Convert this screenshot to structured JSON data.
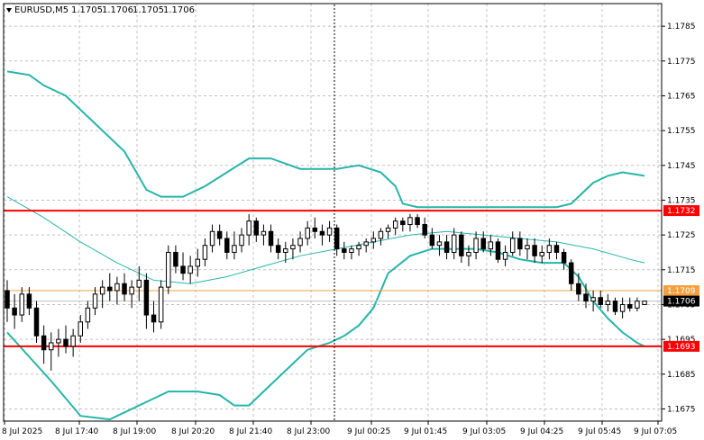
{
  "chart_data": {
    "type": "candlestick",
    "symbol_header": "EURUSD,M5",
    "ohlc_header": [
      "1.1705",
      "1.1706",
      "1.1705",
      "1.1706"
    ],
    "y_ticks": [
      "1.1785",
      "1.1775",
      "1.1765",
      "1.1755",
      "1.1745",
      "1.1735",
      "1.1725",
      "1.1715",
      "1.1705",
      "1.1695",
      "1.1685",
      "1.1675"
    ],
    "ylim": [
      1.16715,
      1.17915
    ],
    "x_ticks": [
      "8 Jul 2025",
      "8 Jul 17:40",
      "8 Jul 19:00",
      "8 Jul 20:20",
      "8 Jul 21:40",
      "8 Jul 23:00",
      "9 Jul 00:25",
      "9 Jul 01:45",
      "9 Jul 03:05",
      "9 Jul 04:25",
      "9 Jul 05:45",
      "9 Jul 07:05"
    ],
    "horizontal_levels": [
      {
        "value": 1.1732,
        "label": "1.1732",
        "color": "#ff0000"
      },
      {
        "value": 1.1693,
        "label": "1.1693",
        "color": "#ff0000"
      },
      {
        "value": 1.1709,
        "label": "1.1709",
        "color": "#f5a040"
      }
    ],
    "current_price": {
      "value": 1.1706,
      "label": "1.1706"
    },
    "vertical_marker_x": "8 Jul 23:00",
    "indicators": {
      "bollinger_color": "#26b5aa",
      "ma_color": "#26b5aa",
      "upper_band": [
        [
          0,
          1.1772
        ],
        [
          3,
          1.1771
        ],
        [
          5,
          1.1768
        ],
        [
          8,
          1.1765
        ],
        [
          12,
          1.1757
        ],
        [
          16,
          1.1749
        ],
        [
          19,
          1.1738
        ],
        [
          21,
          1.1736
        ],
        [
          24,
          1.1736
        ],
        [
          27,
          1.1739
        ],
        [
          30,
          1.1743
        ],
        [
          33,
          1.1747
        ],
        [
          36,
          1.1747
        ],
        [
          40,
          1.1744
        ],
        [
          45,
          1.1744
        ],
        [
          48,
          1.1745
        ],
        [
          51,
          1.1743
        ],
        [
          53,
          1.1739
        ],
        [
          54,
          1.1734
        ],
        [
          56,
          1.1733
        ],
        [
          60,
          1.1733
        ],
        [
          64,
          1.1733
        ],
        [
          68,
          1.1733
        ],
        [
          72,
          1.1733
        ],
        [
          75,
          1.1733
        ],
        [
          77,
          1.1734
        ],
        [
          80,
          1.174
        ],
        [
          82,
          1.1742
        ],
        [
          84,
          1.1743
        ],
        [
          87,
          1.1742
        ]
      ],
      "middle_band": [
        [
          0,
          1.1736
        ],
        [
          5,
          1.173
        ],
        [
          10,
          1.1723
        ],
        [
          15,
          1.1717
        ],
        [
          20,
          1.1712
        ],
        [
          25,
          1.1711
        ],
        [
          30,
          1.1713
        ],
        [
          35,
          1.1716
        ],
        [
          40,
          1.1719
        ],
        [
          45,
          1.1721
        ],
        [
          50,
          1.1723
        ],
        [
          55,
          1.1725
        ],
        [
          60,
          1.1726
        ],
        [
          65,
          1.1725
        ],
        [
          70,
          1.1724
        ],
        [
          75,
          1.1723
        ],
        [
          80,
          1.1721
        ],
        [
          85,
          1.1718
        ],
        [
          87,
          1.1717
        ]
      ],
      "lower_band": [
        [
          0,
          1.1697
        ],
        [
          3,
          1.169
        ],
        [
          6,
          1.1683
        ],
        [
          10,
          1.1673
        ],
        [
          14,
          1.1672
        ],
        [
          18,
          1.1676
        ],
        [
          22,
          1.168
        ],
        [
          26,
          1.168
        ],
        [
          29,
          1.1679
        ],
        [
          31,
          1.1676
        ],
        [
          33,
          1.1676
        ],
        [
          35,
          1.168
        ],
        [
          38,
          1.1686
        ],
        [
          41,
          1.1692
        ],
        [
          44,
          1.1694
        ],
        [
          46,
          1.1696
        ],
        [
          48,
          1.1699
        ],
        [
          50,
          1.1704
        ],
        [
          52,
          1.1714
        ],
        [
          55,
          1.1719
        ],
        [
          58,
          1.1721
        ],
        [
          61,
          1.1721
        ],
        [
          64,
          1.1721
        ],
        [
          67,
          1.172
        ],
        [
          70,
          1.1718
        ],
        [
          73,
          1.1717
        ],
        [
          76,
          1.1717
        ],
        [
          78,
          1.1713
        ],
        [
          80,
          1.1706
        ],
        [
          82,
          1.1701
        ],
        [
          84,
          1.1697
        ],
        [
          86,
          1.1694
        ],
        [
          87,
          1.1693
        ]
      ]
    },
    "candles": [
      [
        1.1709,
        1.1712,
        1.17,
        1.1704
      ],
      [
        1.1704,
        1.1708,
        1.1698,
        1.1702
      ],
      [
        1.1702,
        1.171,
        1.17,
        1.1708
      ],
      [
        1.1708,
        1.171,
        1.1702,
        1.1704
      ],
      [
        1.1704,
        1.1706,
        1.1694,
        1.1696
      ],
      [
        1.1696,
        1.1699,
        1.1688,
        1.1692
      ],
      [
        1.1692,
        1.1697,
        1.1686,
        1.1694
      ],
      [
        1.1694,
        1.1698,
        1.169,
        1.1695
      ],
      [
        1.1695,
        1.1699,
        1.1691,
        1.1693
      ],
      [
        1.1693,
        1.1698,
        1.169,
        1.1696
      ],
      [
        1.1696,
        1.1702,
        1.1694,
        1.17
      ],
      [
        1.17,
        1.1706,
        1.1698,
        1.1704
      ],
      [
        1.1704,
        1.171,
        1.1702,
        1.1708
      ],
      [
        1.1708,
        1.1712,
        1.1704,
        1.171
      ],
      [
        1.171,
        1.1714,
        1.1706,
        1.1709
      ],
      [
        1.1709,
        1.1713,
        1.1705,
        1.1711
      ],
      [
        1.1711,
        1.1714,
        1.1706,
        1.1708
      ],
      [
        1.1708,
        1.1712,
        1.1704,
        1.171
      ],
      [
        1.171,
        1.1716,
        1.1706,
        1.1712
      ],
      [
        1.1712,
        1.1714,
        1.1698,
        1.1702
      ],
      [
        1.1702,
        1.1706,
        1.1697,
        1.17
      ],
      [
        1.17,
        1.1712,
        1.1698,
        1.171
      ],
      [
        1.171,
        1.1722,
        1.1708,
        1.172
      ],
      [
        1.172,
        1.1722,
        1.1714,
        1.1716
      ],
      [
        1.1716,
        1.172,
        1.1712,
        1.1714
      ],
      [
        1.1714,
        1.1719,
        1.1711,
        1.1716
      ],
      [
        1.1716,
        1.1721,
        1.1713,
        1.1718
      ],
      [
        1.1718,
        1.1724,
        1.1716,
        1.1722
      ],
      [
        1.1722,
        1.1728,
        1.172,
        1.1726
      ],
      [
        1.1726,
        1.1728,
        1.1722,
        1.1724
      ],
      [
        1.1724,
        1.1726,
        1.1718,
        1.172
      ],
      [
        1.172,
        1.1726,
        1.1718,
        1.1722
      ],
      [
        1.1722,
        1.1727,
        1.172,
        1.1725
      ],
      [
        1.1725,
        1.1731,
        1.1722,
        1.1729
      ],
      [
        1.1729,
        1.173,
        1.1723,
        1.1725
      ],
      [
        1.1725,
        1.1728,
        1.1722,
        1.1726
      ],
      [
        1.1726,
        1.1728,
        1.172,
        1.1722
      ],
      [
        1.1722,
        1.1724,
        1.1718,
        1.172
      ],
      [
        1.172,
        1.1723,
        1.1717,
        1.1721
      ],
      [
        1.1721,
        1.1724,
        1.1718,
        1.1722
      ],
      [
        1.1722,
        1.1726,
        1.172,
        1.1724
      ],
      [
        1.1724,
        1.1729,
        1.1722,
        1.1727
      ],
      [
        1.1727,
        1.173,
        1.1724,
        1.1726
      ],
      [
        1.1726,
        1.1728,
        1.1722,
        1.1725
      ],
      [
        1.1725,
        1.1729,
        1.1723,
        1.1727
      ],
      [
        1.1727,
        1.1728,
        1.1719,
        1.1721
      ],
      [
        1.1721,
        1.1723,
        1.1718,
        1.172
      ],
      [
        1.172,
        1.1722,
        1.1718,
        1.1721
      ],
      [
        1.1721,
        1.1723,
        1.1719,
        1.1722
      ],
      [
        1.1722,
        1.1724,
        1.172,
        1.1723
      ],
      [
        1.1723,
        1.1726,
        1.1721,
        1.1724
      ],
      [
        1.1724,
        1.1727,
        1.1722,
        1.1726
      ],
      [
        1.1726,
        1.1728,
        1.1724,
        1.1727
      ],
      [
        1.1727,
        1.173,
        1.1725,
        1.1729
      ],
      [
        1.1729,
        1.173,
        1.1726,
        1.1728
      ],
      [
        1.1728,
        1.1731,
        1.1726,
        1.173
      ],
      [
        1.173,
        1.1731,
        1.1727,
        1.1728
      ],
      [
        1.1728,
        1.173,
        1.1724,
        1.1725
      ],
      [
        1.1725,
        1.1727,
        1.1721,
        1.1722
      ],
      [
        1.1722,
        1.1725,
        1.1719,
        1.1723
      ],
      [
        1.1723,
        1.1725,
        1.1718,
        1.172
      ],
      [
        1.172,
        1.1727,
        1.1718,
        1.1725
      ],
      [
        1.1725,
        1.1726,
        1.1717,
        1.1719
      ],
      [
        1.1719,
        1.1722,
        1.1716,
        1.172
      ],
      [
        1.172,
        1.1726,
        1.1718,
        1.1724
      ],
      [
        1.1724,
        1.1726,
        1.172,
        1.1721
      ],
      [
        1.1721,
        1.1725,
        1.1719,
        1.1723
      ],
      [
        1.1723,
        1.1724,
        1.1717,
        1.1718
      ],
      [
        1.1718,
        1.1722,
        1.1716,
        1.172
      ],
      [
        1.172,
        1.1726,
        1.1719,
        1.1724
      ],
      [
        1.1724,
        1.1726,
        1.1719,
        1.1721
      ],
      [
        1.1721,
        1.1724,
        1.1718,
        1.1722
      ],
      [
        1.1722,
        1.1724,
        1.1717,
        1.1719
      ],
      [
        1.1719,
        1.1722,
        1.1717,
        1.172
      ],
      [
        1.172,
        1.1724,
        1.1718,
        1.1722
      ],
      [
        1.1722,
        1.1723,
        1.1718,
        1.172
      ],
      [
        1.172,
        1.1721,
        1.1715,
        1.1717
      ],
      [
        1.1717,
        1.1718,
        1.1709,
        1.1711
      ],
      [
        1.1711,
        1.1714,
        1.1706,
        1.1708
      ],
      [
        1.1708,
        1.1711,
        1.1704,
        1.1706
      ],
      [
        1.1706,
        1.1709,
        1.1703,
        1.1707
      ],
      [
        1.1707,
        1.1709,
        1.1704,
        1.1705
      ],
      [
        1.1705,
        1.1708,
        1.1703,
        1.1706
      ],
      [
        1.1706,
        1.1707,
        1.1702,
        1.1703
      ],
      [
        1.1703,
        1.1707,
        1.1701,
        1.1705
      ],
      [
        1.1705,
        1.1707,
        1.1703,
        1.1704
      ],
      [
        1.1704,
        1.1707,
        1.1703,
        1.1706
      ],
      [
        1.1705,
        1.1706,
        1.1705,
        1.1706
      ]
    ]
  }
}
